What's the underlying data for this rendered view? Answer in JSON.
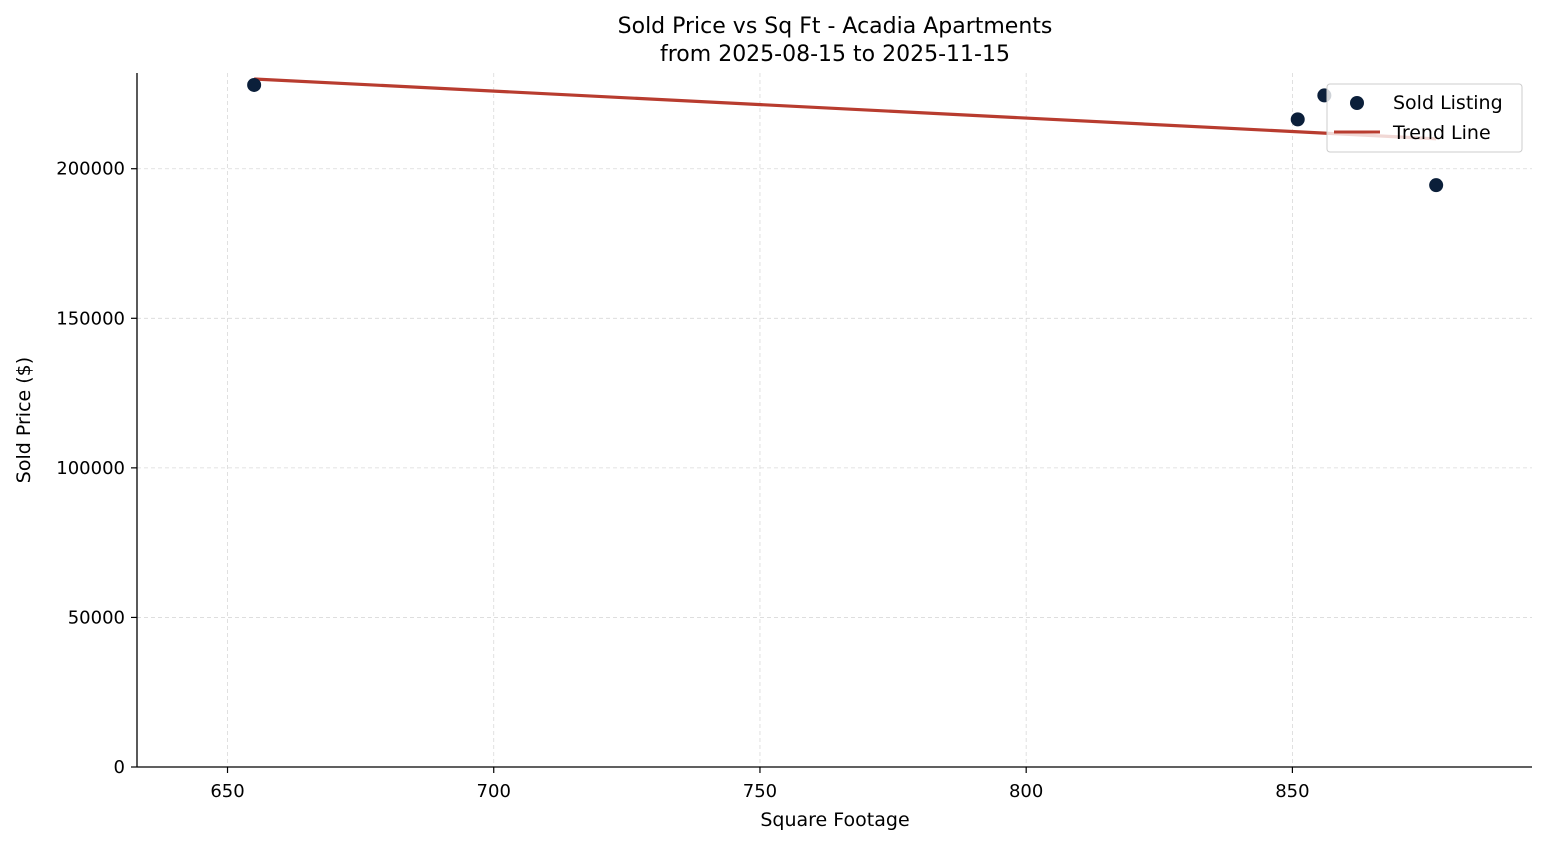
{
  "chart_data": {
    "type": "scatter",
    "title": "Sold Price vs Sq Ft - Acadia Apartments",
    "subtitle": "from 2025-08-15 to 2025-11-15",
    "xlabel": "Square Footage",
    "ylabel": "Sold Price ($)",
    "xlim": [
      633,
      895
    ],
    "ylim": [
      0,
      232000
    ],
    "x_ticks": [
      650,
      700,
      750,
      800,
      850
    ],
    "y_ticks": [
      0,
      50000,
      100000,
      150000,
      200000
    ],
    "x_tick_labels": [
      "650",
      "700",
      "750",
      "800",
      "850"
    ],
    "y_tick_labels": [
      "0",
      "50000",
      "100000",
      "150000",
      "200000"
    ],
    "grid": true,
    "legend_position": "top-right",
    "series": [
      {
        "name": "Sold Listing",
        "kind": "scatter",
        "color": "#0b1f3a",
        "points": [
          {
            "x": 655,
            "y": 228000
          },
          {
            "x": 851,
            "y": 216500
          },
          {
            "x": 856,
            "y": 224500
          },
          {
            "x": 877,
            "y": 194500
          }
        ]
      },
      {
        "name": "Trend Line",
        "kind": "line",
        "color": "#b83c2f",
        "points": [
          {
            "x": 655,
            "y": 230000
          },
          {
            "x": 877,
            "y": 210000
          }
        ]
      }
    ]
  }
}
